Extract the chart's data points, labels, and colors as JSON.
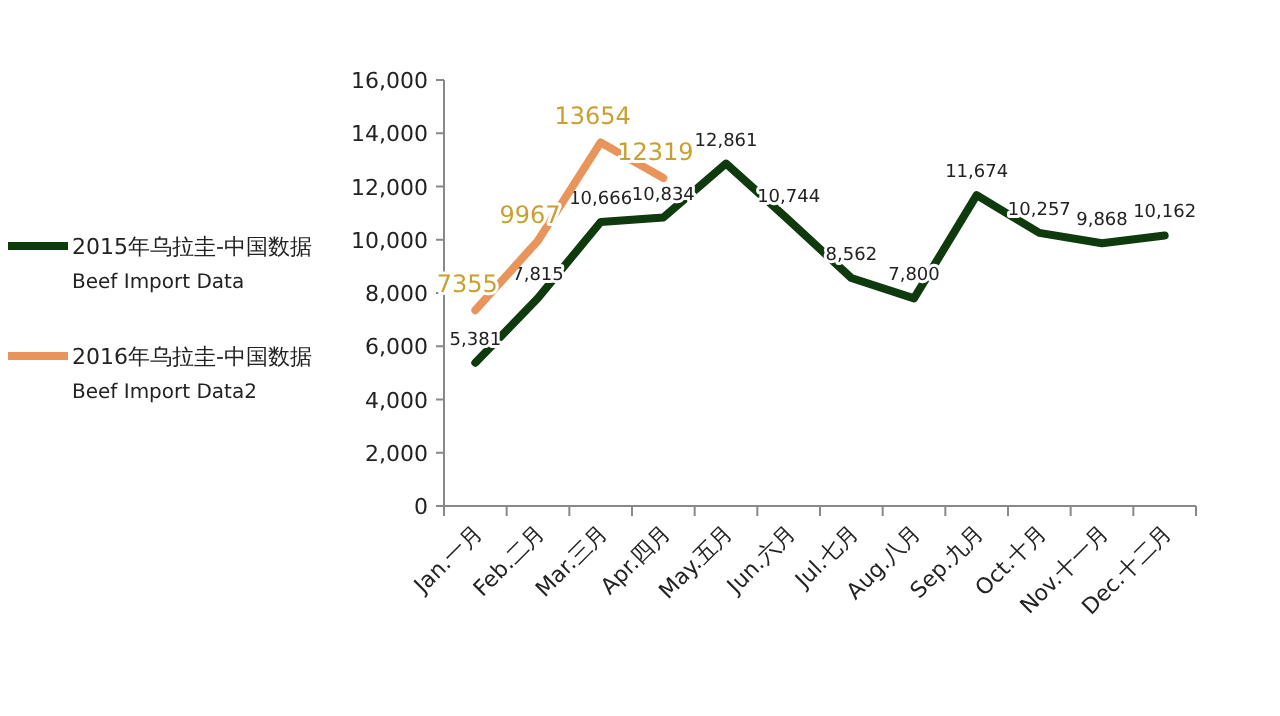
{
  "chart_data": {
    "type": "line",
    "categories": [
      "Jan.一月",
      "Feb.二月",
      "Mar.三月",
      "Apr.四月",
      "May.五月",
      "Jun.六月",
      "Jul.七月",
      "Aug.八月",
      "Sep.九月",
      "Oct.十月",
      "Nov.十一月",
      "Dec.十二月"
    ],
    "series": [
      {
        "name": "2015年乌拉圭-中国数据\nBeef Import Data",
        "color": "#0e3a0e",
        "values": [
          5381,
          7815,
          10666,
          10834,
          12861,
          10744,
          8562,
          7800,
          11674,
          10257,
          9868,
          10162
        ],
        "value_labels": [
          "5,381",
          "7,815",
          "10,666",
          "10,834",
          "12,861",
          "10,744",
          "8,562",
          "7,800",
          "11,674",
          "10,257",
          "9,868",
          "10,162"
        ]
      },
      {
        "name": "2016年乌拉圭-中国数据\nBeef Import Data2",
        "color": "#e8945a",
        "values": [
          7355,
          9967,
          13654,
          12319,
          null,
          null,
          null,
          null,
          null,
          null,
          null,
          null
        ],
        "value_labels": [
          "7355",
          "9967",
          "13654",
          "12319",
          null,
          null,
          null,
          null,
          null,
          null,
          null,
          null
        ]
      }
    ],
    "ylim": [
      0,
      16000
    ],
    "yticks": [
      {
        "value": 0,
        "label": "0"
      },
      {
        "value": 2000,
        "label": "2,000"
      },
      {
        "value": 4000,
        "label": "4,000"
      },
      {
        "value": 6000,
        "label": "6,000"
      },
      {
        "value": 8000,
        "label": "8,000"
      },
      {
        "value": 10000,
        "label": "10,000"
      },
      {
        "value": 12000,
        "label": "12,000"
      },
      {
        "value": 14000,
        "label": "14,000"
      },
      {
        "value": 16000,
        "label": "16,000"
      }
    ],
    "grid": false,
    "legend": "left",
    "marker": "none",
    "line_style": "solid"
  }
}
